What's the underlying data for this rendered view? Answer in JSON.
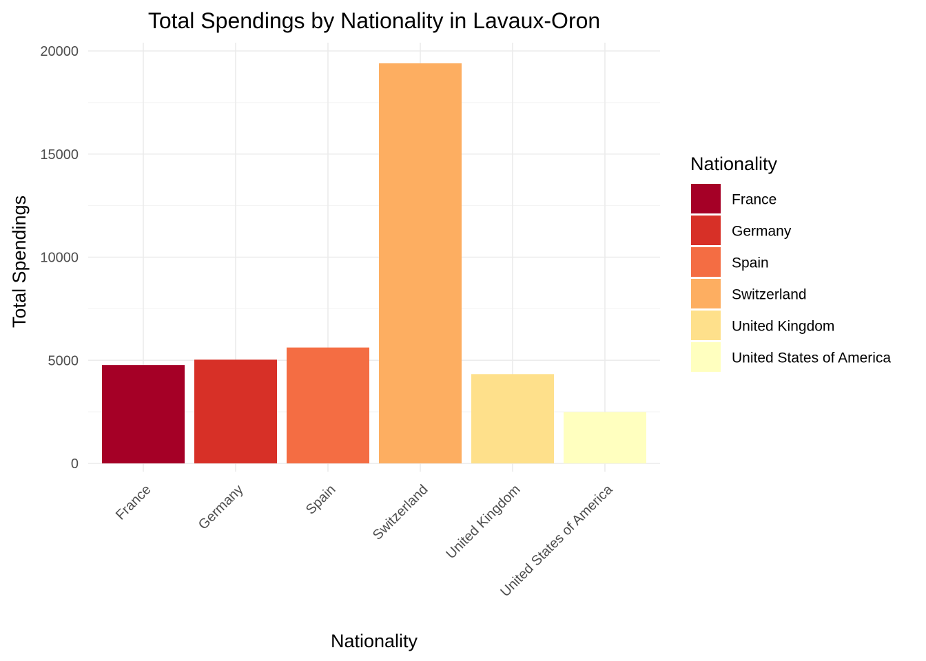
{
  "chart_data": {
    "type": "bar",
    "title": "Total Spendings by Nationality in Lavaux-Oron",
    "xlabel": "Nationality",
    "ylabel": "Total Spendings",
    "categories": [
      "France",
      "Germany",
      "Spain",
      "Switzerland",
      "United Kingdom",
      "United States of America"
    ],
    "values": [
      4770,
      5030,
      5620,
      19400,
      4330,
      2490
    ],
    "colors": [
      "#A50026",
      "#D73027",
      "#F46D43",
      "#FDAE61",
      "#FEE08B",
      "#FFFFBF"
    ],
    "ylim": [
      0,
      20000
    ],
    "yticks": [
      0,
      5000,
      10000,
      15000,
      20000
    ],
    "ytick_labels": [
      "0",
      "5000",
      "10000",
      "15000",
      "20000"
    ],
    "grid": true,
    "legend": {
      "title": "Nationality",
      "position": "right",
      "entries": [
        "France",
        "Germany",
        "Spain",
        "Switzerland",
        "United Kingdom",
        "United States of America"
      ]
    }
  }
}
